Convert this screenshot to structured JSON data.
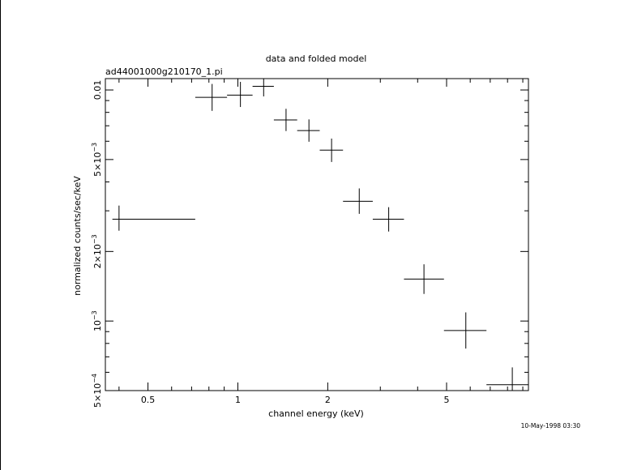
{
  "title": "data and folded model",
  "subtitle": "ad44001000g210170_1.pi",
  "timestamp": "10-May-1998 03:30",
  "chart_data": {
    "type": "scatter",
    "xlabel": "channel energy (keV)",
    "ylabel": "normalized counts/sec/keV",
    "xscale": "log",
    "yscale": "log",
    "xlim": [
      0.36,
      9.4
    ],
    "ylim": [
      0.0005,
      0.0112
    ],
    "xticks": [
      {
        "value": 0.5,
        "label": "0.5"
      },
      {
        "value": 1,
        "label": "1"
      },
      {
        "value": 2,
        "label": "2"
      },
      {
        "value": 5,
        "label": "5"
      }
    ],
    "yticks": [
      {
        "value": 0.0005,
        "base": "5×10",
        "exp": "−4"
      },
      {
        "value": 0.001,
        "base": "10",
        "exp": "−3"
      },
      {
        "value": 0.002,
        "base": "2×10",
        "exp": "−3"
      },
      {
        "value": 0.005,
        "base": "5×10",
        "exp": "−3"
      },
      {
        "value": 0.01,
        "base": "0.01",
        "exp": ""
      }
    ],
    "points": [
      {
        "x": 0.4,
        "xlo": 0.38,
        "xhi": 0.72,
        "y": 0.00276,
        "ylo": 0.00246,
        "yhi": 0.00316
      },
      {
        "x": 0.82,
        "xlo": 0.72,
        "xhi": 0.92,
        "y": 0.00929,
        "ylo": 0.00812,
        "yhi": 0.01062
      },
      {
        "x": 1.02,
        "xlo": 0.92,
        "xhi": 1.12,
        "y": 0.0095,
        "ylo": 0.00844,
        "yhi": 0.01084
      },
      {
        "x": 1.22,
        "xlo": 1.12,
        "xhi": 1.32,
        "y": 0.01037,
        "ylo": 0.00938,
        "yhi": 0.0115
      },
      {
        "x": 1.45,
        "xlo": 1.32,
        "xhi": 1.58,
        "y": 0.00742,
        "ylo": 0.00664,
        "yhi": 0.00829
      },
      {
        "x": 1.73,
        "xlo": 1.58,
        "xhi": 1.88,
        "y": 0.00667,
        "ylo": 0.00597,
        "yhi": 0.00746
      },
      {
        "x": 2.06,
        "xlo": 1.88,
        "xhi": 2.25,
        "y": 0.00549,
        "ylo": 0.00488,
        "yhi": 0.00616
      },
      {
        "x": 2.55,
        "xlo": 2.25,
        "xhi": 2.83,
        "y": 0.0033,
        "ylo": 0.00291,
        "yhi": 0.00375
      },
      {
        "x": 3.2,
        "xlo": 2.83,
        "xhi": 3.6,
        "y": 0.00276,
        "ylo": 0.00244,
        "yhi": 0.00311
      },
      {
        "x": 4.2,
        "xlo": 3.6,
        "xhi": 4.9,
        "y": 0.00152,
        "ylo": 0.00131,
        "yhi": 0.00176
      },
      {
        "x": 5.8,
        "xlo": 4.9,
        "xhi": 6.8,
        "y": 0.00091,
        "ylo": 0.00076,
        "yhi": 0.00109
      },
      {
        "x": 8.3,
        "xlo": 6.8,
        "xhi": 9.4,
        "y": 0.00053,
        "ylo": 0.00046,
        "yhi": 0.00063
      }
    ]
  }
}
